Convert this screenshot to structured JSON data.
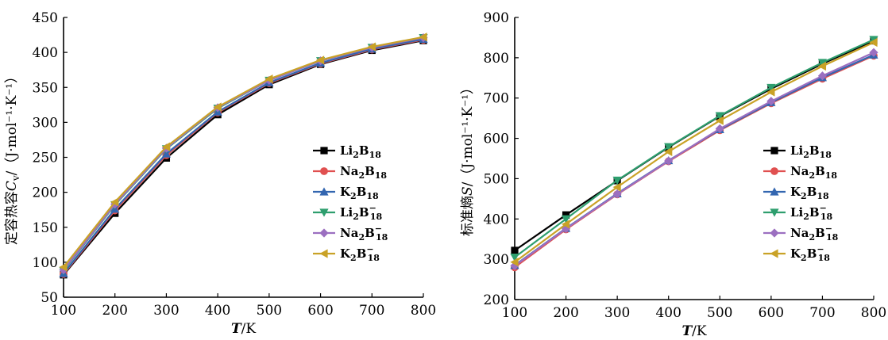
{
  "chart_data": [
    {
      "type": "line",
      "x": [
        100,
        200,
        300,
        400,
        500,
        600,
        700,
        800
      ],
      "xlim": [
        100,
        800
      ],
      "ylim": [
        50,
        450
      ],
      "xticks": [
        100,
        200,
        300,
        400,
        500,
        600,
        700,
        800
      ],
      "yticks": [
        50,
        100,
        150,
        200,
        250,
        300,
        350,
        400,
        450
      ],
      "xlabel": {
        "italic": "T",
        "rest": "/K"
      },
      "ylabel": {
        "cn": "定容热容",
        "italic": "C",
        "sub": "v",
        "unit": "/（J·mol⁻¹·K⁻¹）"
      },
      "legend_position": "bottom-right",
      "grid": false,
      "series": [
        {
          "name": {
            "base": "Li",
            "sub1": "2",
            "mid": "B",
            "sub2": "18",
            "sup": ""
          },
          "color": "#000000",
          "marker": "square",
          "values": [
            82,
            170,
            249,
            311,
            354,
            383,
            403,
            417
          ]
        },
        {
          "name": {
            "base": "Na",
            "sub1": "2",
            "mid": "B",
            "sub2": "18",
            "sup": ""
          },
          "color": "#e05050",
          "marker": "circle",
          "values": [
            83,
            174,
            253,
            314,
            356,
            384,
            404,
            418
          ]
        },
        {
          "name": {
            "base": "K",
            "sub1": "2",
            "mid": "B",
            "sub2": "18",
            "sup": ""
          },
          "color": "#3366b0",
          "marker": "triangle-up",
          "values": [
            84,
            176,
            255,
            315,
            357,
            385,
            405,
            419
          ]
        },
        {
          "name": {
            "base": "Li",
            "sub1": "2",
            "mid": "B",
            "sub2": "18",
            "sup": "−"
          },
          "color": "#2e9e6e",
          "marker": "triangle-down",
          "values": [
            88,
            182,
            262,
            320,
            360,
            388,
            407,
            421
          ]
        },
        {
          "name": {
            "base": "Na",
            "sub1": "2",
            "mid": "B",
            "sub2": "18",
            "sup": "−"
          },
          "color": "#9b6fc0",
          "marker": "diamond",
          "values": [
            89,
            183,
            263,
            321,
            360,
            388,
            407,
            421
          ]
        },
        {
          "name": {
            "base": "K",
            "sub1": "2",
            "mid": "B",
            "sub2": "18",
            "sup": "−"
          },
          "color": "#c9a227",
          "marker": "triangle-left",
          "values": [
            93,
            186,
            265,
            322,
            362,
            389,
            408,
            422
          ]
        }
      ]
    },
    {
      "type": "line",
      "x": [
        100,
        200,
        300,
        400,
        500,
        600,
        700,
        800
      ],
      "xlim": [
        100,
        800
      ],
      "ylim": [
        200,
        900
      ],
      "xticks": [
        100,
        200,
        300,
        400,
        500,
        600,
        700,
        800
      ],
      "yticks": [
        200,
        300,
        400,
        500,
        600,
        700,
        800,
        900
      ],
      "xlabel": {
        "italic": "T",
        "rest": "/K"
      },
      "ylabel": {
        "cn": "标准熵",
        "italic": "S",
        "sub": "",
        "unit": "/（J·mol⁻¹·K⁻¹）"
      },
      "legend_position": "bottom-right",
      "grid": false,
      "series": [
        {
          "name": {
            "base": "Li",
            "sub1": "2",
            "mid": "B",
            "sub2": "18",
            "sup": ""
          },
          "color": "#000000",
          "marker": "square",
          "values": [
            322,
            410,
            495,
            578,
            655,
            723,
            785,
            842
          ]
        },
        {
          "name": {
            "base": "Na",
            "sub1": "2",
            "mid": "B",
            "sub2": "18",
            "sup": ""
          },
          "color": "#e05050",
          "marker": "circle",
          "values": [
            280,
            374,
            461,
            543,
            620,
            687,
            748,
            805
          ]
        },
        {
          "name": {
            "base": "K",
            "sub1": "2",
            "mid": "B",
            "sub2": "18",
            "sup": ""
          },
          "color": "#3366b0",
          "marker": "triangle-up",
          "values": [
            285,
            377,
            463,
            545,
            622,
            689,
            751,
            807
          ]
        },
        {
          "name": {
            "base": "Li",
            "sub1": "2",
            "mid": "B",
            "sub2": "18",
            "sup": "−"
          },
          "color": "#2e9e6e",
          "marker": "triangle-down",
          "values": [
            305,
            400,
            496,
            579,
            656,
            726,
            788,
            845
          ]
        },
        {
          "name": {
            "base": "Na",
            "sub1": "2",
            "mid": "B",
            "sub2": "18",
            "sup": "−"
          },
          "color": "#9b6fc0",
          "marker": "diamond",
          "values": [
            284,
            376,
            462,
            544,
            624,
            692,
            755,
            813
          ]
        },
        {
          "name": {
            "base": "K",
            "sub1": "2",
            "mid": "B",
            "sub2": "18",
            "sup": "−"
          },
          "color": "#c9a227",
          "marker": "triangle-left",
          "values": [
            293,
            387,
            479,
            567,
            644,
            715,
            779,
            838
          ]
        }
      ]
    }
  ]
}
